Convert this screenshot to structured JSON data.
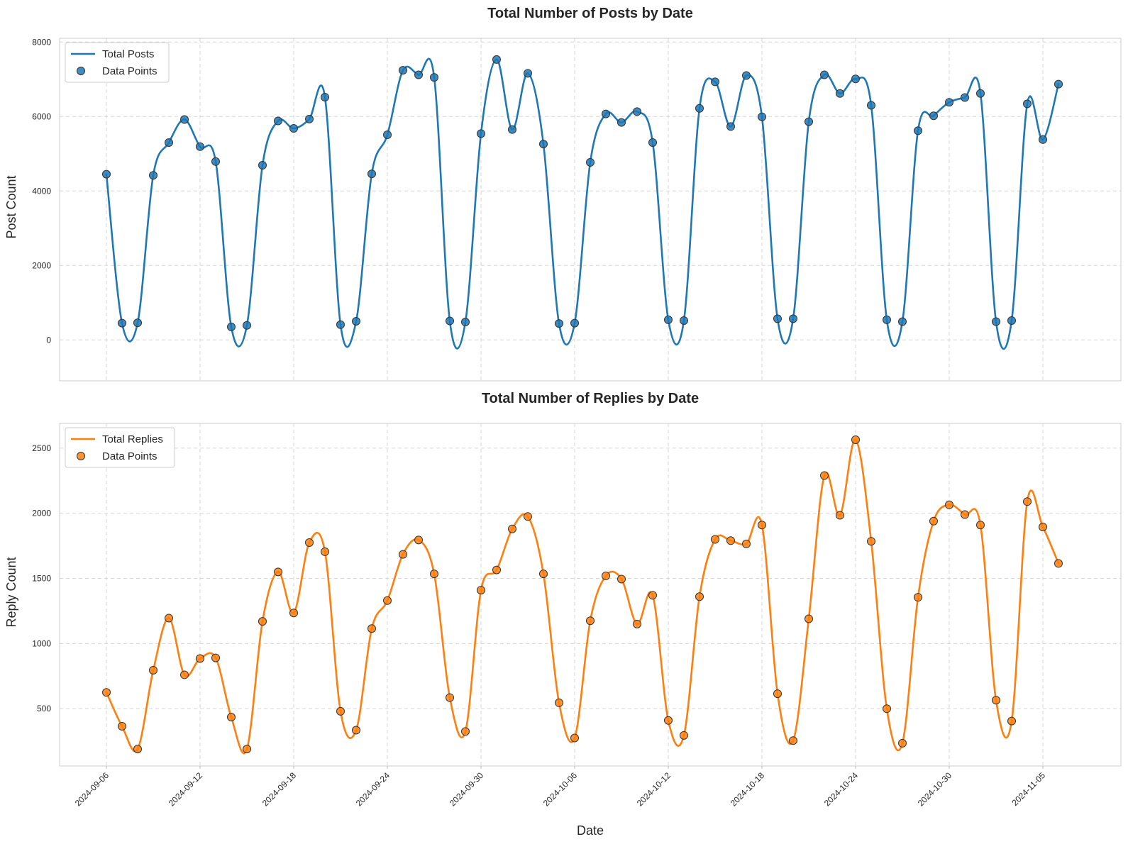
{
  "chart_data": [
    {
      "type": "line",
      "title": "Total Number of Posts by Date",
      "xlabel": "",
      "ylabel": "Post Count",
      "ylim": [
        -1100,
        8100
      ],
      "yticks": [
        0,
        2000,
        4000,
        6000,
        8000
      ],
      "grid": true,
      "legend": {
        "placement": "top-left",
        "entries": [
          "Total Posts",
          "Data Points"
        ]
      },
      "series": [
        {
          "name": "Total Posts",
          "color": "#1f77b4",
          "x": [
            "2024-09-06",
            "2024-09-07",
            "2024-09-08",
            "2024-09-09",
            "2024-09-10",
            "2024-09-11",
            "2024-09-12",
            "2024-09-13",
            "2024-09-14",
            "2024-09-15",
            "2024-09-16",
            "2024-09-17",
            "2024-09-18",
            "2024-09-19",
            "2024-09-20",
            "2024-09-21",
            "2024-09-22",
            "2024-09-23",
            "2024-09-24",
            "2024-09-25",
            "2024-09-26",
            "2024-09-27",
            "2024-09-28",
            "2024-09-29",
            "2024-09-30",
            "2024-10-01",
            "2024-10-02",
            "2024-10-03",
            "2024-10-04",
            "2024-10-05",
            "2024-10-06",
            "2024-10-07",
            "2024-10-08",
            "2024-10-09",
            "2024-10-10",
            "2024-10-11",
            "2024-10-12",
            "2024-10-13",
            "2024-10-14",
            "2024-10-15",
            "2024-10-16",
            "2024-10-17",
            "2024-10-18",
            "2024-10-19",
            "2024-10-20",
            "2024-10-21",
            "2024-10-22",
            "2024-10-23",
            "2024-10-24",
            "2024-10-25",
            "2024-10-26",
            "2024-10-27",
            "2024-10-28",
            "2024-10-29",
            "2024-10-30",
            "2024-10-31",
            "2024-11-01",
            "2024-11-02",
            "2024-11-03",
            "2024-11-04",
            "2024-11-05",
            "2024-11-06"
          ],
          "values": [
            4450,
            450,
            460,
            4420,
            5300,
            5920,
            5190,
            4790,
            350,
            390,
            4690,
            5880,
            5680,
            5930,
            6520,
            410,
            500,
            4460,
            5510,
            7240,
            7120,
            7050,
            510,
            480,
            5540,
            7530,
            5650,
            7160,
            5260,
            440,
            450,
            4770,
            6070,
            5840,
            6130,
            5300,
            540,
            520,
            6220,
            6930,
            5730,
            7100,
            5990,
            570,
            570,
            5860,
            7120,
            6620,
            7010,
            6300,
            540,
            490,
            5620,
            6020,
            6380,
            6510,
            6620,
            490,
            520,
            6340,
            5380,
            6870
          ]
        }
      ]
    },
    {
      "type": "line",
      "title": "Total Number of Replies by Date",
      "xlabel": "Date",
      "ylabel": "Reply Count",
      "ylim": [
        60,
        2690
      ],
      "yticks": [
        500,
        1000,
        1500,
        2000,
        2500
      ],
      "xticks": [
        "2024-09-06",
        "2024-09-12",
        "2024-09-18",
        "2024-09-24",
        "2024-09-30",
        "2024-10-06",
        "2024-10-12",
        "2024-10-18",
        "2024-10-24",
        "2024-10-30",
        "2024-11-05"
      ],
      "grid": true,
      "legend": {
        "placement": "top-left",
        "entries": [
          "Total Replies",
          "Data Points"
        ]
      },
      "series": [
        {
          "name": "Total Replies",
          "color": "#ff7f0e",
          "x": [
            "2024-09-06",
            "2024-09-07",
            "2024-09-08",
            "2024-09-09",
            "2024-09-10",
            "2024-09-11",
            "2024-09-12",
            "2024-09-13",
            "2024-09-14",
            "2024-09-15",
            "2024-09-16",
            "2024-09-17",
            "2024-09-18",
            "2024-09-19",
            "2024-09-20",
            "2024-09-21",
            "2024-09-22",
            "2024-09-23",
            "2024-09-24",
            "2024-09-25",
            "2024-09-26",
            "2024-09-27",
            "2024-09-28",
            "2024-09-29",
            "2024-09-30",
            "2024-10-01",
            "2024-10-02",
            "2024-10-03",
            "2024-10-04",
            "2024-10-05",
            "2024-10-06",
            "2024-10-07",
            "2024-10-08",
            "2024-10-09",
            "2024-10-10",
            "2024-10-11",
            "2024-10-12",
            "2024-10-13",
            "2024-10-14",
            "2024-10-15",
            "2024-10-16",
            "2024-10-17",
            "2024-10-18",
            "2024-10-19",
            "2024-10-20",
            "2024-10-21",
            "2024-10-22",
            "2024-10-23",
            "2024-10-24",
            "2024-10-25",
            "2024-10-26",
            "2024-10-27",
            "2024-10-28",
            "2024-10-29",
            "2024-10-30",
            "2024-10-31",
            "2024-11-01",
            "2024-11-02",
            "2024-11-03",
            "2024-11-04",
            "2024-11-05",
            "2024-11-06"
          ],
          "values": [
            625,
            365,
            190,
            795,
            1195,
            760,
            885,
            890,
            435,
            190,
            1170,
            1550,
            1235,
            1775,
            1705,
            480,
            335,
            1115,
            1330,
            1685,
            1795,
            1535,
            585,
            325,
            1410,
            1565,
            1880,
            1975,
            1535,
            545,
            275,
            1175,
            1520,
            1495,
            1150,
            1370,
            410,
            295,
            1360,
            1800,
            1790,
            1765,
            1910,
            615,
            255,
            1190,
            2290,
            1985,
            2565,
            1785,
            500,
            235,
            1355,
            1940,
            2065,
            1990,
            1910,
            565,
            405,
            2090,
            1895,
            1615
          ]
        }
      ]
    }
  ]
}
